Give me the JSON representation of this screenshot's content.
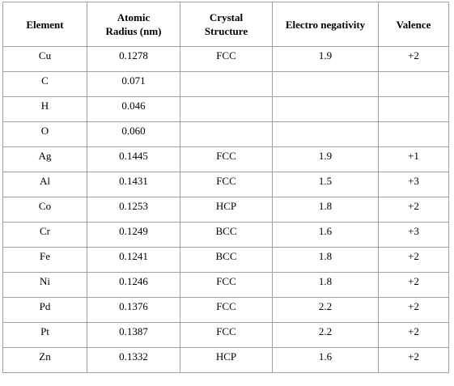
{
  "table": {
    "headers": {
      "element": "Element",
      "radius_line1": "Atomic",
      "radius_line2": "Radius (nm)",
      "structure_line1": "Crystal",
      "structure_line2": "Structure",
      "electronegativity": "Electro negativity",
      "valence": "Valence"
    },
    "rows": [
      {
        "element": "Cu",
        "radius": "0.1278",
        "structure": "FCC",
        "electronegativity": "1.9",
        "valence": "+2"
      },
      {
        "element": "C",
        "radius": "0.071",
        "structure": "",
        "electronegativity": "",
        "valence": ""
      },
      {
        "element": "H",
        "radius": "0.046",
        "structure": "",
        "electronegativity": "",
        "valence": ""
      },
      {
        "element": "O",
        "radius": "0.060",
        "structure": "",
        "electronegativity": "",
        "valence": ""
      },
      {
        "element": "Ag",
        "radius": "0.1445",
        "structure": "FCC",
        "electronegativity": "1.9",
        "valence": "+1"
      },
      {
        "element": "Al",
        "radius": "0.1431",
        "structure": "FCC",
        "electronegativity": "1.5",
        "valence": "+3"
      },
      {
        "element": "Co",
        "radius": "0.1253",
        "structure": "HCP",
        "electronegativity": "1.8",
        "valence": "+2"
      },
      {
        "element": "Cr",
        "radius": "0.1249",
        "structure": "BCC",
        "electronegativity": "1.6",
        "valence": "+3"
      },
      {
        "element": "Fe",
        "radius": "0.1241",
        "structure": "BCC",
        "electronegativity": "1.8",
        "valence": "+2"
      },
      {
        "element": "Ni",
        "radius": "0.1246",
        "structure": "FCC",
        "electronegativity": "1.8",
        "valence": "+2"
      },
      {
        "element": "Pd",
        "radius": "0.1376",
        "structure": "FCC",
        "electronegativity": "2.2",
        "valence": "+2"
      },
      {
        "element": "Pt",
        "radius": "0.1387",
        "structure": "FCC",
        "electronegativity": "2.2",
        "valence": "+2"
      },
      {
        "element": "Zn",
        "radius": "0.1332",
        "structure": "HCP",
        "electronegativity": "1.6",
        "valence": "+2"
      }
    ]
  }
}
